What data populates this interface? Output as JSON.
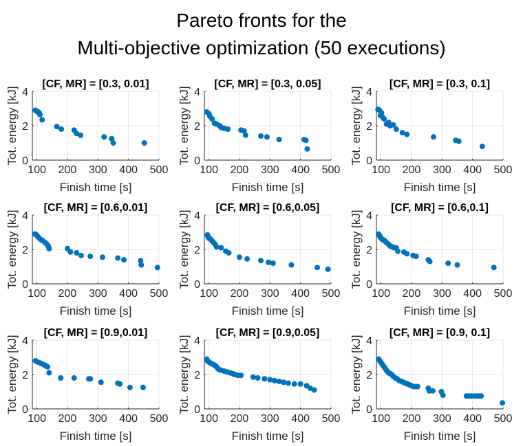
{
  "figure": {
    "title_lines": [
      "Pareto fronts for the",
      "Multi-objective optimization (50 executions)"
    ]
  },
  "colors": {
    "marker": "#0072bd",
    "grid": "#e6e6e6",
    "axis": "#262626"
  },
  "chart_data": [
    {
      "type": "scatter",
      "title": "[CF, MR] = [0.3, 0.01]",
      "xlabel": "Finish time [s]",
      "ylabel": "Tot. energy [kJ]",
      "xlim": [
        85,
        500
      ],
      "ylim": [
        0,
        4
      ],
      "xticks": [
        100,
        200,
        300,
        400,
        500
      ],
      "yticks": [
        0,
        2,
        4
      ],
      "grid": true,
      "series": [
        {
          "points": [
            [
              95,
              2.9
            ],
            [
              100,
              2.85
            ],
            [
              104,
              2.8
            ],
            [
              107,
              2.75
            ],
            [
              110,
              2.65
            ],
            [
              117,
              2.35
            ],
            [
              165,
              1.95
            ],
            [
              180,
              1.8
            ],
            [
              222,
              1.75
            ],
            [
              230,
              1.55
            ],
            [
              243,
              1.45
            ],
            [
              320,
              1.35
            ],
            [
              345,
              1.25
            ],
            [
              350,
              1.0
            ],
            [
              452,
              1.0
            ]
          ]
        }
      ]
    },
    {
      "type": "scatter",
      "title": "[CF, MR] = [0.3, 0.05]",
      "xlabel": "Finish time [s]",
      "ylabel": "Tot. energy [kJ]",
      "xlim": [
        85,
        500
      ],
      "ylim": [
        0,
        4
      ],
      "xticks": [
        100,
        200,
        300,
        400,
        500
      ],
      "yticks": [
        0,
        2,
        4
      ],
      "grid": true,
      "series": [
        {
          "points": [
            [
              93,
              2.8
            ],
            [
              100,
              2.7
            ],
            [
              103,
              2.55
            ],
            [
              110,
              2.4
            ],
            [
              118,
              2.15
            ],
            [
              125,
              2.1
            ],
            [
              135,
              2.0
            ],
            [
              140,
              1.9
            ],
            [
              150,
              1.85
            ],
            [
              162,
              1.8
            ],
            [
              205,
              1.75
            ],
            [
              215,
              1.7
            ],
            [
              220,
              1.45
            ],
            [
              270,
              1.4
            ],
            [
              290,
              1.35
            ],
            [
              330,
              1.2
            ],
            [
              412,
              1.2
            ],
            [
              418,
              1.15
            ],
            [
              422,
              0.65
            ]
          ]
        }
      ]
    },
    {
      "type": "scatter",
      "title": "[CF, MR] = [0.3, 0.1]",
      "xlabel": "Finish time [s]",
      "ylabel": "Tot. energy [kJ]",
      "xlim": [
        85,
        500
      ],
      "ylim": [
        0,
        4
      ],
      "xticks": [
        100,
        200,
        300,
        400,
        500
      ],
      "yticks": [
        0,
        2,
        4
      ],
      "grid": true,
      "series": [
        {
          "points": [
            [
              90,
              2.95
            ],
            [
              95,
              2.9
            ],
            [
              98,
              2.6
            ],
            [
              102,
              2.75
            ],
            [
              105,
              2.5
            ],
            [
              110,
              2.4
            ],
            [
              118,
              2.1
            ],
            [
              125,
              2.2
            ],
            [
              130,
              2.0
            ],
            [
              140,
              2.05
            ],
            [
              150,
              1.8
            ],
            [
              170,
              1.6
            ],
            [
              185,
              1.5
            ],
            [
              272,
              1.35
            ],
            [
              345,
              1.15
            ],
            [
              355,
              1.1
            ],
            [
              432,
              0.8
            ]
          ]
        }
      ]
    },
    {
      "type": "scatter",
      "title": "[CF, MR] = [0.6,0.01]",
      "xlabel": "Finish time [s]",
      "ylabel": "Tot. energy [kJ]",
      "xlim": [
        85,
        500
      ],
      "ylim": [
        0,
        4
      ],
      "xticks": [
        100,
        200,
        300,
        400,
        500
      ],
      "yticks": [
        0,
        2,
        4
      ],
      "grid": true,
      "series": [
        {
          "points": [
            [
              93,
              2.9
            ],
            [
              98,
              2.85
            ],
            [
              103,
              2.75
            ],
            [
              108,
              2.65
            ],
            [
              115,
              2.55
            ],
            [
              120,
              2.5
            ],
            [
              127,
              2.4
            ],
            [
              133,
              2.3
            ],
            [
              137,
              2.2
            ],
            [
              140,
              2.05
            ],
            [
              200,
              2.05
            ],
            [
              210,
              1.85
            ],
            [
              230,
              1.8
            ],
            [
              245,
              1.65
            ],
            [
              275,
              1.6
            ],
            [
              315,
              1.55
            ],
            [
              365,
              1.5
            ],
            [
              385,
              1.4
            ],
            [
              440,
              1.35
            ],
            [
              442,
              1.1
            ],
            [
              495,
              0.95
            ]
          ]
        }
      ]
    },
    {
      "type": "scatter",
      "title": "[CF, MR] = [0.6,0.05]",
      "xlabel": "Finish time [s]",
      "ylabel": "Tot. energy [kJ]",
      "xlim": [
        85,
        500
      ],
      "ylim": [
        0,
        4
      ],
      "xticks": [
        100,
        200,
        300,
        400,
        500
      ],
      "yticks": [
        0,
        2,
        4
      ],
      "grid": true,
      "series": [
        {
          "points": [
            [
              95,
              2.85
            ],
            [
              97,
              2.75
            ],
            [
              100,
              2.65
            ],
            [
              105,
              2.6
            ],
            [
              110,
              2.5
            ],
            [
              115,
              2.4
            ],
            [
              120,
              2.3
            ],
            [
              125,
              2.15
            ],
            [
              140,
              2.1
            ],
            [
              155,
              1.9
            ],
            [
              165,
              1.8
            ],
            [
              200,
              1.55
            ],
            [
              225,
              1.45
            ],
            [
              270,
              1.35
            ],
            [
              295,
              1.25
            ],
            [
              310,
              1.2
            ],
            [
              370,
              1.1
            ],
            [
              455,
              0.95
            ],
            [
              490,
              0.85
            ]
          ]
        }
      ]
    },
    {
      "type": "scatter",
      "title": "[CF, MR] = [0.6,0.1]",
      "xlabel": "Finish time [s]",
      "ylabel": "Tot. energy [kJ]",
      "xlim": [
        85,
        500
      ],
      "ylim": [
        0,
        4
      ],
      "xticks": [
        100,
        200,
        300,
        400,
        500
      ],
      "yticks": [
        0,
        2,
        4
      ],
      "grid": true,
      "series": [
        {
          "points": [
            [
              92,
              2.9
            ],
            [
              95,
              2.8
            ],
            [
              98,
              2.7
            ],
            [
              103,
              2.6
            ],
            [
              108,
              2.55
            ],
            [
              112,
              2.5
            ],
            [
              118,
              2.4
            ],
            [
              125,
              2.3
            ],
            [
              130,
              2.2
            ],
            [
              138,
              2.15
            ],
            [
              143,
              2.1
            ],
            [
              150,
              2.1
            ],
            [
              155,
              1.9
            ],
            [
              175,
              1.85
            ],
            [
              185,
              1.75
            ],
            [
              205,
              1.65
            ],
            [
              215,
              1.6
            ],
            [
              255,
              1.4
            ],
            [
              260,
              1.3
            ],
            [
              320,
              1.2
            ],
            [
              350,
              1.1
            ],
            [
              470,
              0.95
            ]
          ]
        }
      ]
    },
    {
      "type": "scatter",
      "title": "[CF, MR] = [0.9,0.01]",
      "xlabel": "Finish time [s]",
      "ylabel": "Tot. energy [kJ]",
      "xlim": [
        85,
        500
      ],
      "ylim": [
        0,
        4
      ],
      "xticks": [
        100,
        200,
        300,
        400,
        500
      ],
      "yticks": [
        0,
        2,
        4
      ],
      "grid": true,
      "series": [
        {
          "points": [
            [
              95,
              2.8
            ],
            [
              100,
              2.75
            ],
            [
              107,
              2.7
            ],
            [
              113,
              2.65
            ],
            [
              120,
              2.6
            ],
            [
              125,
              2.55
            ],
            [
              130,
              2.5
            ],
            [
              135,
              2.45
            ],
            [
              140,
              2.1
            ],
            [
              178,
              1.8
            ],
            [
              222,
              1.8
            ],
            [
              270,
              1.75
            ],
            [
              275,
              1.75
            ],
            [
              310,
              1.55
            ],
            [
              365,
              1.5
            ],
            [
              372,
              1.45
            ],
            [
              405,
              1.25
            ],
            [
              448,
              1.25
            ]
          ]
        }
      ]
    },
    {
      "type": "scatter",
      "title": "[CF, MR] = [0.9,0.05]",
      "xlabel": "Finish time [s]",
      "ylabel": "Tot. energy [kJ]",
      "xlim": [
        85,
        500
      ],
      "ylim": [
        0,
        4
      ],
      "xticks": [
        100,
        200,
        300,
        400,
        500
      ],
      "yticks": [
        0,
        2,
        4
      ],
      "grid": true,
      "series": [
        {
          "points": [
            [
              93,
              2.9
            ],
            [
              95,
              2.8
            ],
            [
              98,
              2.75
            ],
            [
              102,
              2.7
            ],
            [
              107,
              2.65
            ],
            [
              113,
              2.6
            ],
            [
              118,
              2.55
            ],
            [
              122,
              2.5
            ],
            [
              127,
              2.4
            ],
            [
              132,
              2.3
            ],
            [
              140,
              2.25
            ],
            [
              150,
              2.2
            ],
            [
              160,
              2.15
            ],
            [
              170,
              2.1
            ],
            [
              178,
              2.05
            ],
            [
              185,
              2.0
            ],
            [
              195,
              1.95
            ],
            [
              205,
              1.95
            ],
            [
              245,
              1.85
            ],
            [
              260,
              1.8
            ],
            [
              282,
              1.75
            ],
            [
              300,
              1.7
            ],
            [
              315,
              1.65
            ],
            [
              330,
              1.6
            ],
            [
              345,
              1.55
            ],
            [
              360,
              1.5
            ],
            [
              380,
              1.45
            ],
            [
              400,
              1.45
            ],
            [
              420,
              1.35
            ],
            [
              432,
              1.2
            ],
            [
              445,
              1.1
            ]
          ]
        }
      ]
    },
    {
      "type": "scatter",
      "title": "[CF, MR] = [0.9, 0.1]",
      "xlabel": "Finish time [s]",
      "ylabel": "Tot. energy [kJ]",
      "xlim": [
        85,
        500
      ],
      "ylim": [
        0,
        4
      ],
      "xticks": [
        100,
        200,
        300,
        400,
        500
      ],
      "yticks": [
        0,
        2,
        4
      ],
      "grid": true,
      "series": [
        {
          "points": [
            [
              92,
              2.9
            ],
            [
              96,
              2.8
            ],
            [
              100,
              2.7
            ],
            [
              104,
              2.6
            ],
            [
              108,
              2.5
            ],
            [
              112,
              2.4
            ],
            [
              116,
              2.3
            ],
            [
              120,
              2.2
            ],
            [
              125,
              2.1
            ],
            [
              130,
              2.05
            ],
            [
              135,
              2.0
            ],
            [
              140,
              1.9
            ],
            [
              147,
              1.8
            ],
            [
              153,
              1.75
            ],
            [
              160,
              1.65
            ],
            [
              167,
              1.6
            ],
            [
              173,
              1.55
            ],
            [
              180,
              1.5
            ],
            [
              187,
              1.45
            ],
            [
              193,
              1.4
            ],
            [
              200,
              1.35
            ],
            [
              207,
              1.3
            ],
            [
              213,
              1.3
            ],
            [
              220,
              1.3
            ],
            [
              255,
              1.2
            ],
            [
              258,
              1.05
            ],
            [
              270,
              1.05
            ],
            [
              298,
              1.0
            ],
            [
              303,
              0.8
            ],
            [
              380,
              0.75
            ],
            [
              388,
              0.75
            ],
            [
              395,
              0.75
            ],
            [
              405,
              0.75
            ],
            [
              412,
              0.75
            ],
            [
              420,
              0.75
            ],
            [
              428,
              0.75
            ],
            [
              498,
              0.35
            ]
          ]
        }
      ]
    }
  ]
}
